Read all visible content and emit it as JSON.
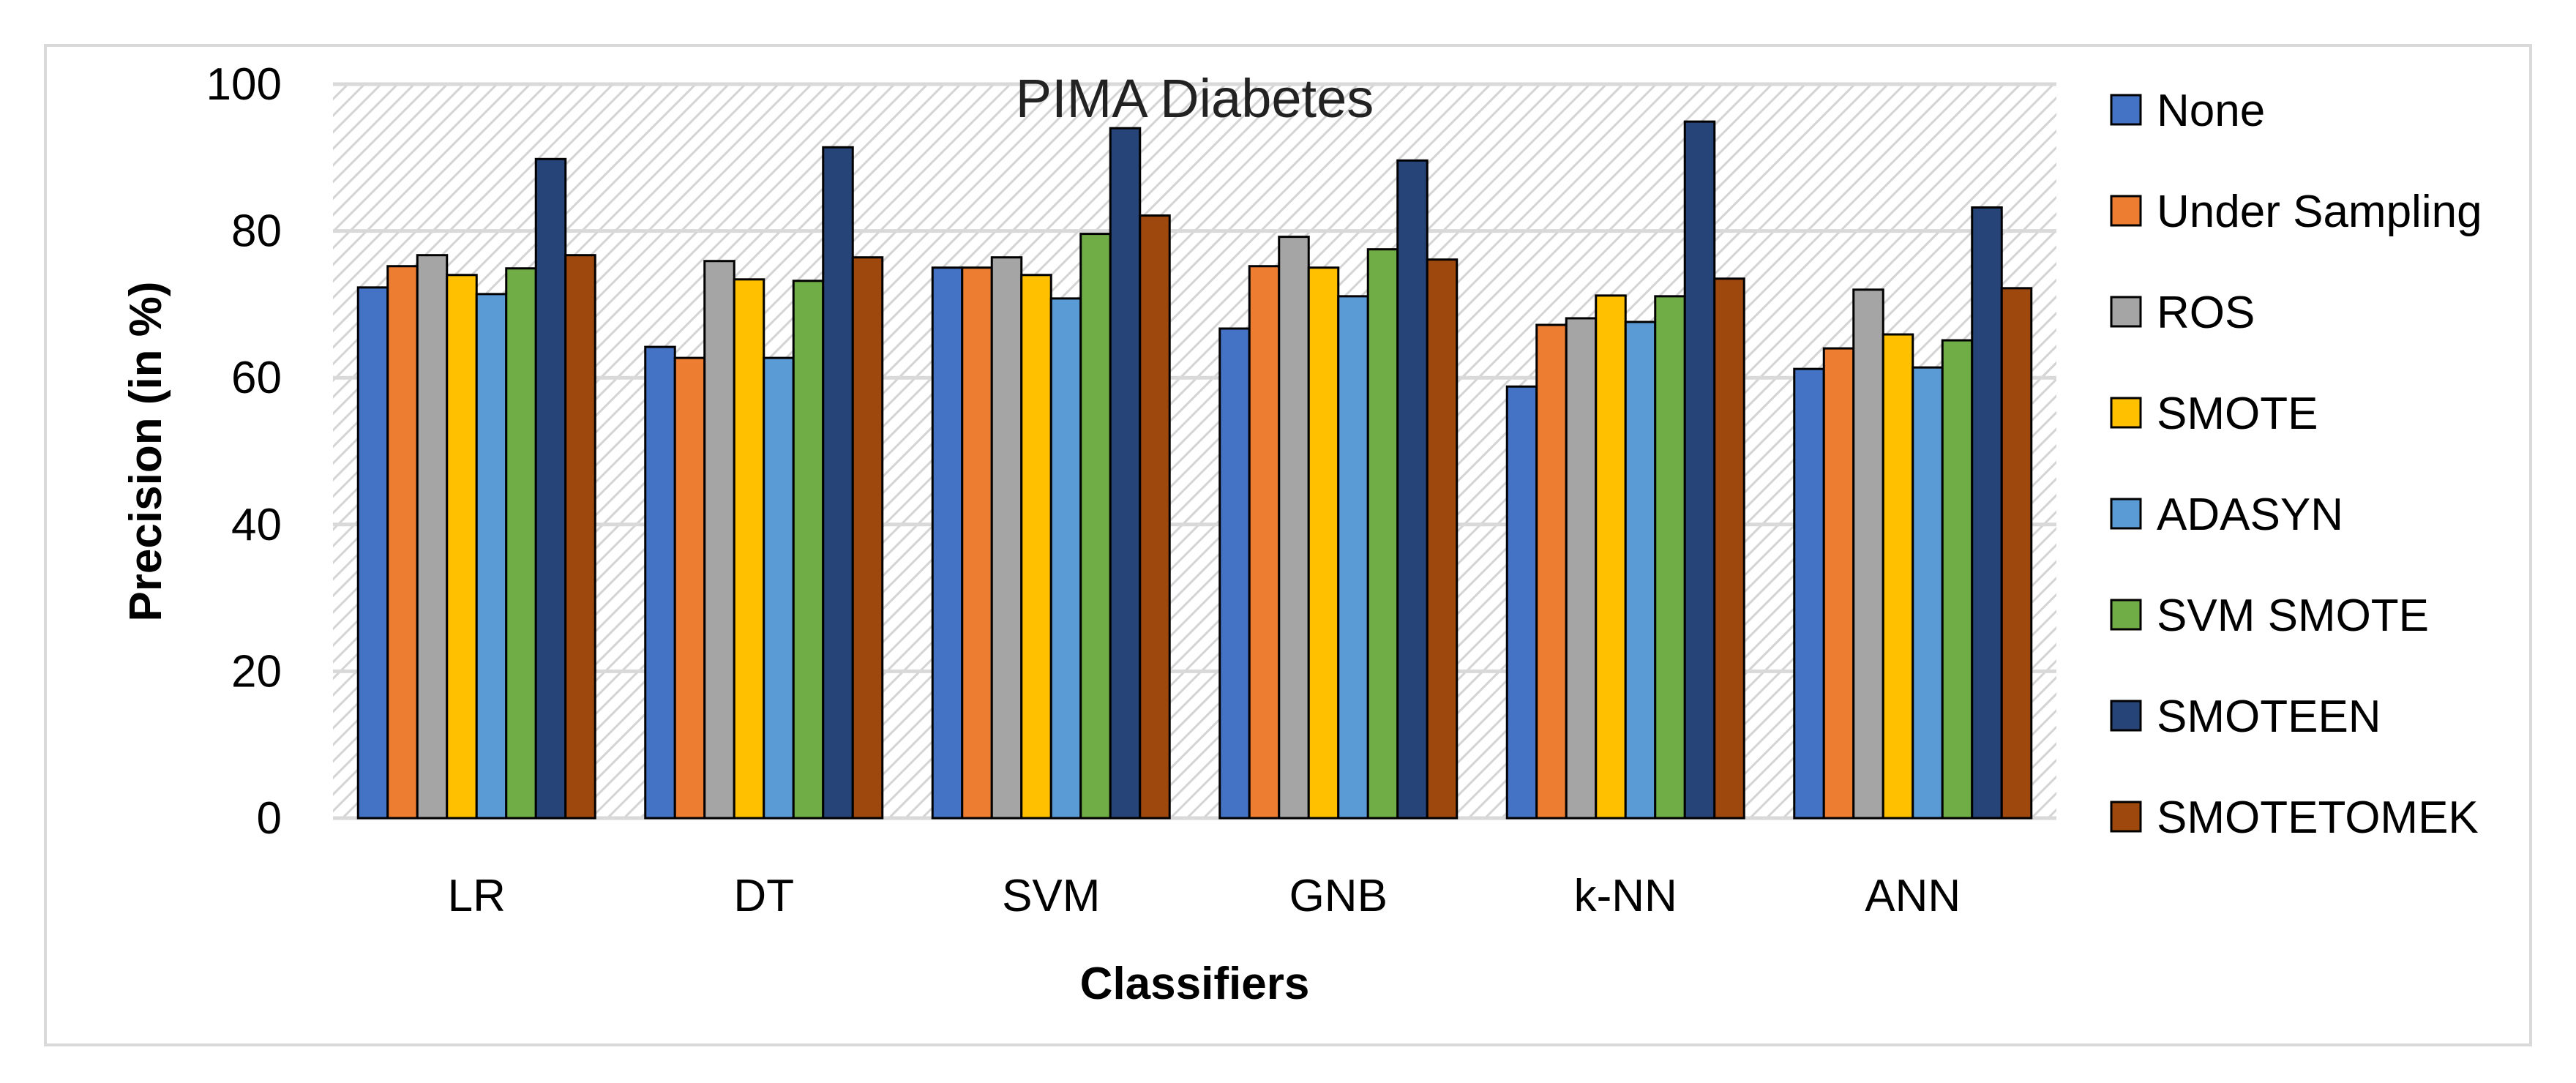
{
  "chart_data": {
    "type": "bar",
    "title": "PIMA Diabetes",
    "xlabel": "Classifiers",
    "ylabel": "Precision (in %)",
    "ylim": [
      0,
      100
    ],
    "yticks": [
      0,
      20,
      40,
      60,
      80,
      100
    ],
    "grid": true,
    "legend_position": "right",
    "categories": [
      "LR",
      "DT",
      "SVM",
      "GNB",
      "k-NN",
      "ANN"
    ],
    "series": [
      {
        "name": "None",
        "color": "#4472c4",
        "values": [
          72.3,
          64.2,
          75.0,
          66.7,
          58.8,
          61.2
        ]
      },
      {
        "name": "Under Sampling",
        "color": "#ed7d31",
        "values": [
          75.2,
          62.7,
          75.0,
          75.2,
          67.2,
          64.0
        ]
      },
      {
        "name": "ROS",
        "color": "#a5a5a5",
        "values": [
          76.7,
          75.9,
          76.4,
          79.2,
          68.1,
          72.0
        ]
      },
      {
        "name": "SMOTE",
        "color": "#ffc000",
        "values": [
          74.0,
          73.4,
          74.0,
          75.0,
          71.2,
          65.9
        ]
      },
      {
        "name": "ADASYN",
        "color": "#5b9bd5",
        "values": [
          71.4,
          62.7,
          70.8,
          71.1,
          67.6,
          61.4
        ]
      },
      {
        "name": "SVM SMOTE",
        "color": "#70ad47",
        "values": [
          74.9,
          73.2,
          79.6,
          77.5,
          71.1,
          65.1
        ]
      },
      {
        "name": "SMOTEEN",
        "color": "#264478",
        "values": [
          89.8,
          91.4,
          94.0,
          89.6,
          94.9,
          83.2
        ]
      },
      {
        "name": "SMOTETOMEK",
        "color": "#9e480e",
        "values": [
          76.7,
          76.4,
          82.1,
          76.1,
          73.5,
          72.2
        ]
      }
    ]
  }
}
